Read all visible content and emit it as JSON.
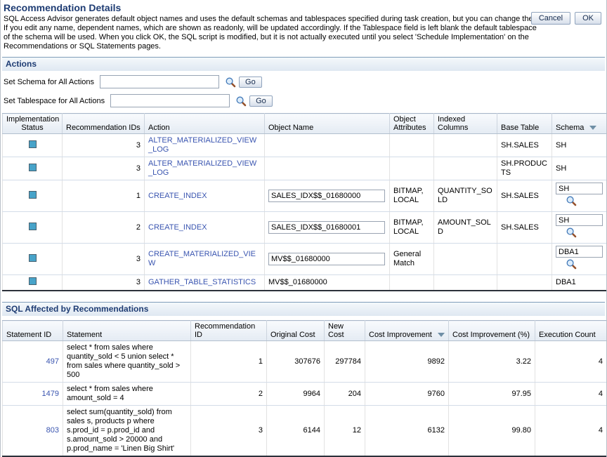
{
  "page": {
    "title": "Recommendation Details",
    "description": "SQL Access Advisor generates default object names and uses the default schemas and tablespaces specified during task creation, but you can change them. If you edit any name, dependent names, which are shown as readonly, will be updated accordingly. If the Tablespace field is left blank the default tablespace of the schema will be used. When you click OK, the SQL script is modified, but it is not actually executed until you select 'Schedule Implementation' on the Recommendations or SQL Statements pages.",
    "buttons": {
      "cancel": "Cancel",
      "ok": "OK"
    }
  },
  "actions_section": {
    "title": "Actions",
    "set_schema_label": "Set Schema for All Actions",
    "set_schema_value": "",
    "set_tablespace_label": "Set Tablespace for All Actions",
    "set_tablespace_value": "",
    "go_label": "Go"
  },
  "actions_table": {
    "columns": [
      "Implementation Status",
      "Recommendation IDs",
      "Action",
      "Object Name",
      "Object Attributes",
      "Indexed Columns",
      "Base Table",
      "Schema"
    ],
    "sorted_column": "Schema",
    "sort_direction": "descending",
    "rows": [
      {
        "recommendation_ids": "3",
        "action": "ALTER_MATERIALIZED_VIEW_LOG",
        "object_name": {
          "type": "text",
          "value": ""
        },
        "object_attributes": "",
        "indexed_columns": "",
        "base_table": "SH.SALES",
        "schema": {
          "type": "text",
          "value": "SH"
        }
      },
      {
        "recommendation_ids": "3",
        "action": "ALTER_MATERIALIZED_VIEW_LOG",
        "object_name": {
          "type": "text",
          "value": ""
        },
        "object_attributes": "",
        "indexed_columns": "",
        "base_table": "SH.PRODUCTS",
        "schema": {
          "type": "text",
          "value": "SH"
        }
      },
      {
        "recommendation_ids": "1",
        "action": "CREATE_INDEX",
        "object_name": {
          "type": "input",
          "value": "SALES_IDX$$_01680000"
        },
        "object_attributes": "BITMAP, LOCAL",
        "indexed_columns": "QUANTITY_SOLD",
        "base_table": "SH.SALES",
        "schema": {
          "type": "input",
          "value": "SH"
        }
      },
      {
        "recommendation_ids": "2",
        "action": "CREATE_INDEX",
        "object_name": {
          "type": "input",
          "value": "SALES_IDX$$_01680001"
        },
        "object_attributes": "BITMAP, LOCAL",
        "indexed_columns": "AMOUNT_SOLD",
        "base_table": "SH.SALES",
        "schema": {
          "type": "input",
          "value": "SH"
        }
      },
      {
        "recommendation_ids": "3",
        "action": "CREATE_MATERIALIZED_VIEW",
        "object_name": {
          "type": "input",
          "value": "MV$$_01680000"
        },
        "object_attributes": "General Match",
        "indexed_columns": "",
        "base_table": "",
        "schema": {
          "type": "input",
          "value": "DBA1"
        }
      },
      {
        "recommendation_ids": "3",
        "action": "GATHER_TABLE_STATISTICS",
        "object_name": {
          "type": "text",
          "value": "MV$$_01680000"
        },
        "object_attributes": "",
        "indexed_columns": "",
        "base_table": "",
        "schema": {
          "type": "text",
          "value": "DBA1"
        }
      }
    ]
  },
  "sql_section": {
    "title": "SQL Affected by Recommendations"
  },
  "sql_table": {
    "columns": [
      "Statement ID",
      "Statement",
      "Recommendation ID",
      "Original Cost",
      "New Cost",
      "Cost Improvement",
      "Cost Improvement (%)",
      "Execution Count"
    ],
    "sorted_column": "Cost Improvement",
    "sort_direction": "descending",
    "rows": [
      {
        "statement_id": "497",
        "statement": "select * from sales where quantity_sold < 5 union select * from sales where quantity_sold > 500",
        "recommendation_id": "1",
        "original_cost": "307676",
        "new_cost": "297784",
        "cost_improvement": "9892",
        "cost_improvement_pct": "3.22",
        "execution_count": "4"
      },
      {
        "statement_id": "1479",
        "statement": "select * from sales where amount_sold = 4",
        "recommendation_id": "2",
        "original_cost": "9964",
        "new_cost": "204",
        "cost_improvement": "9760",
        "cost_improvement_pct": "97.95",
        "execution_count": "4"
      },
      {
        "statement_id": "803",
        "statement": "select sum(quantity_sold) from sales s, products p where s.prod_id = p.prod_id and s.amount_sold > 20000 and p.prod_name = 'Linen Big Shirt'",
        "recommendation_id": "3",
        "original_cost": "6144",
        "new_cost": "12",
        "cost_improvement": "6132",
        "cost_improvement_pct": "99.80",
        "execution_count": "4"
      }
    ]
  },
  "icons": {
    "search": "magnifier-search-icon",
    "status": "implementation-status-square-icon",
    "sort": "sort-descending-icon"
  },
  "colors": {
    "heading": "#1e3c73",
    "link": "#3a55b0",
    "status_square": "#47a3c9",
    "section_bar_top": "#7f9db9",
    "table_bottom_border": "#2c313a"
  }
}
